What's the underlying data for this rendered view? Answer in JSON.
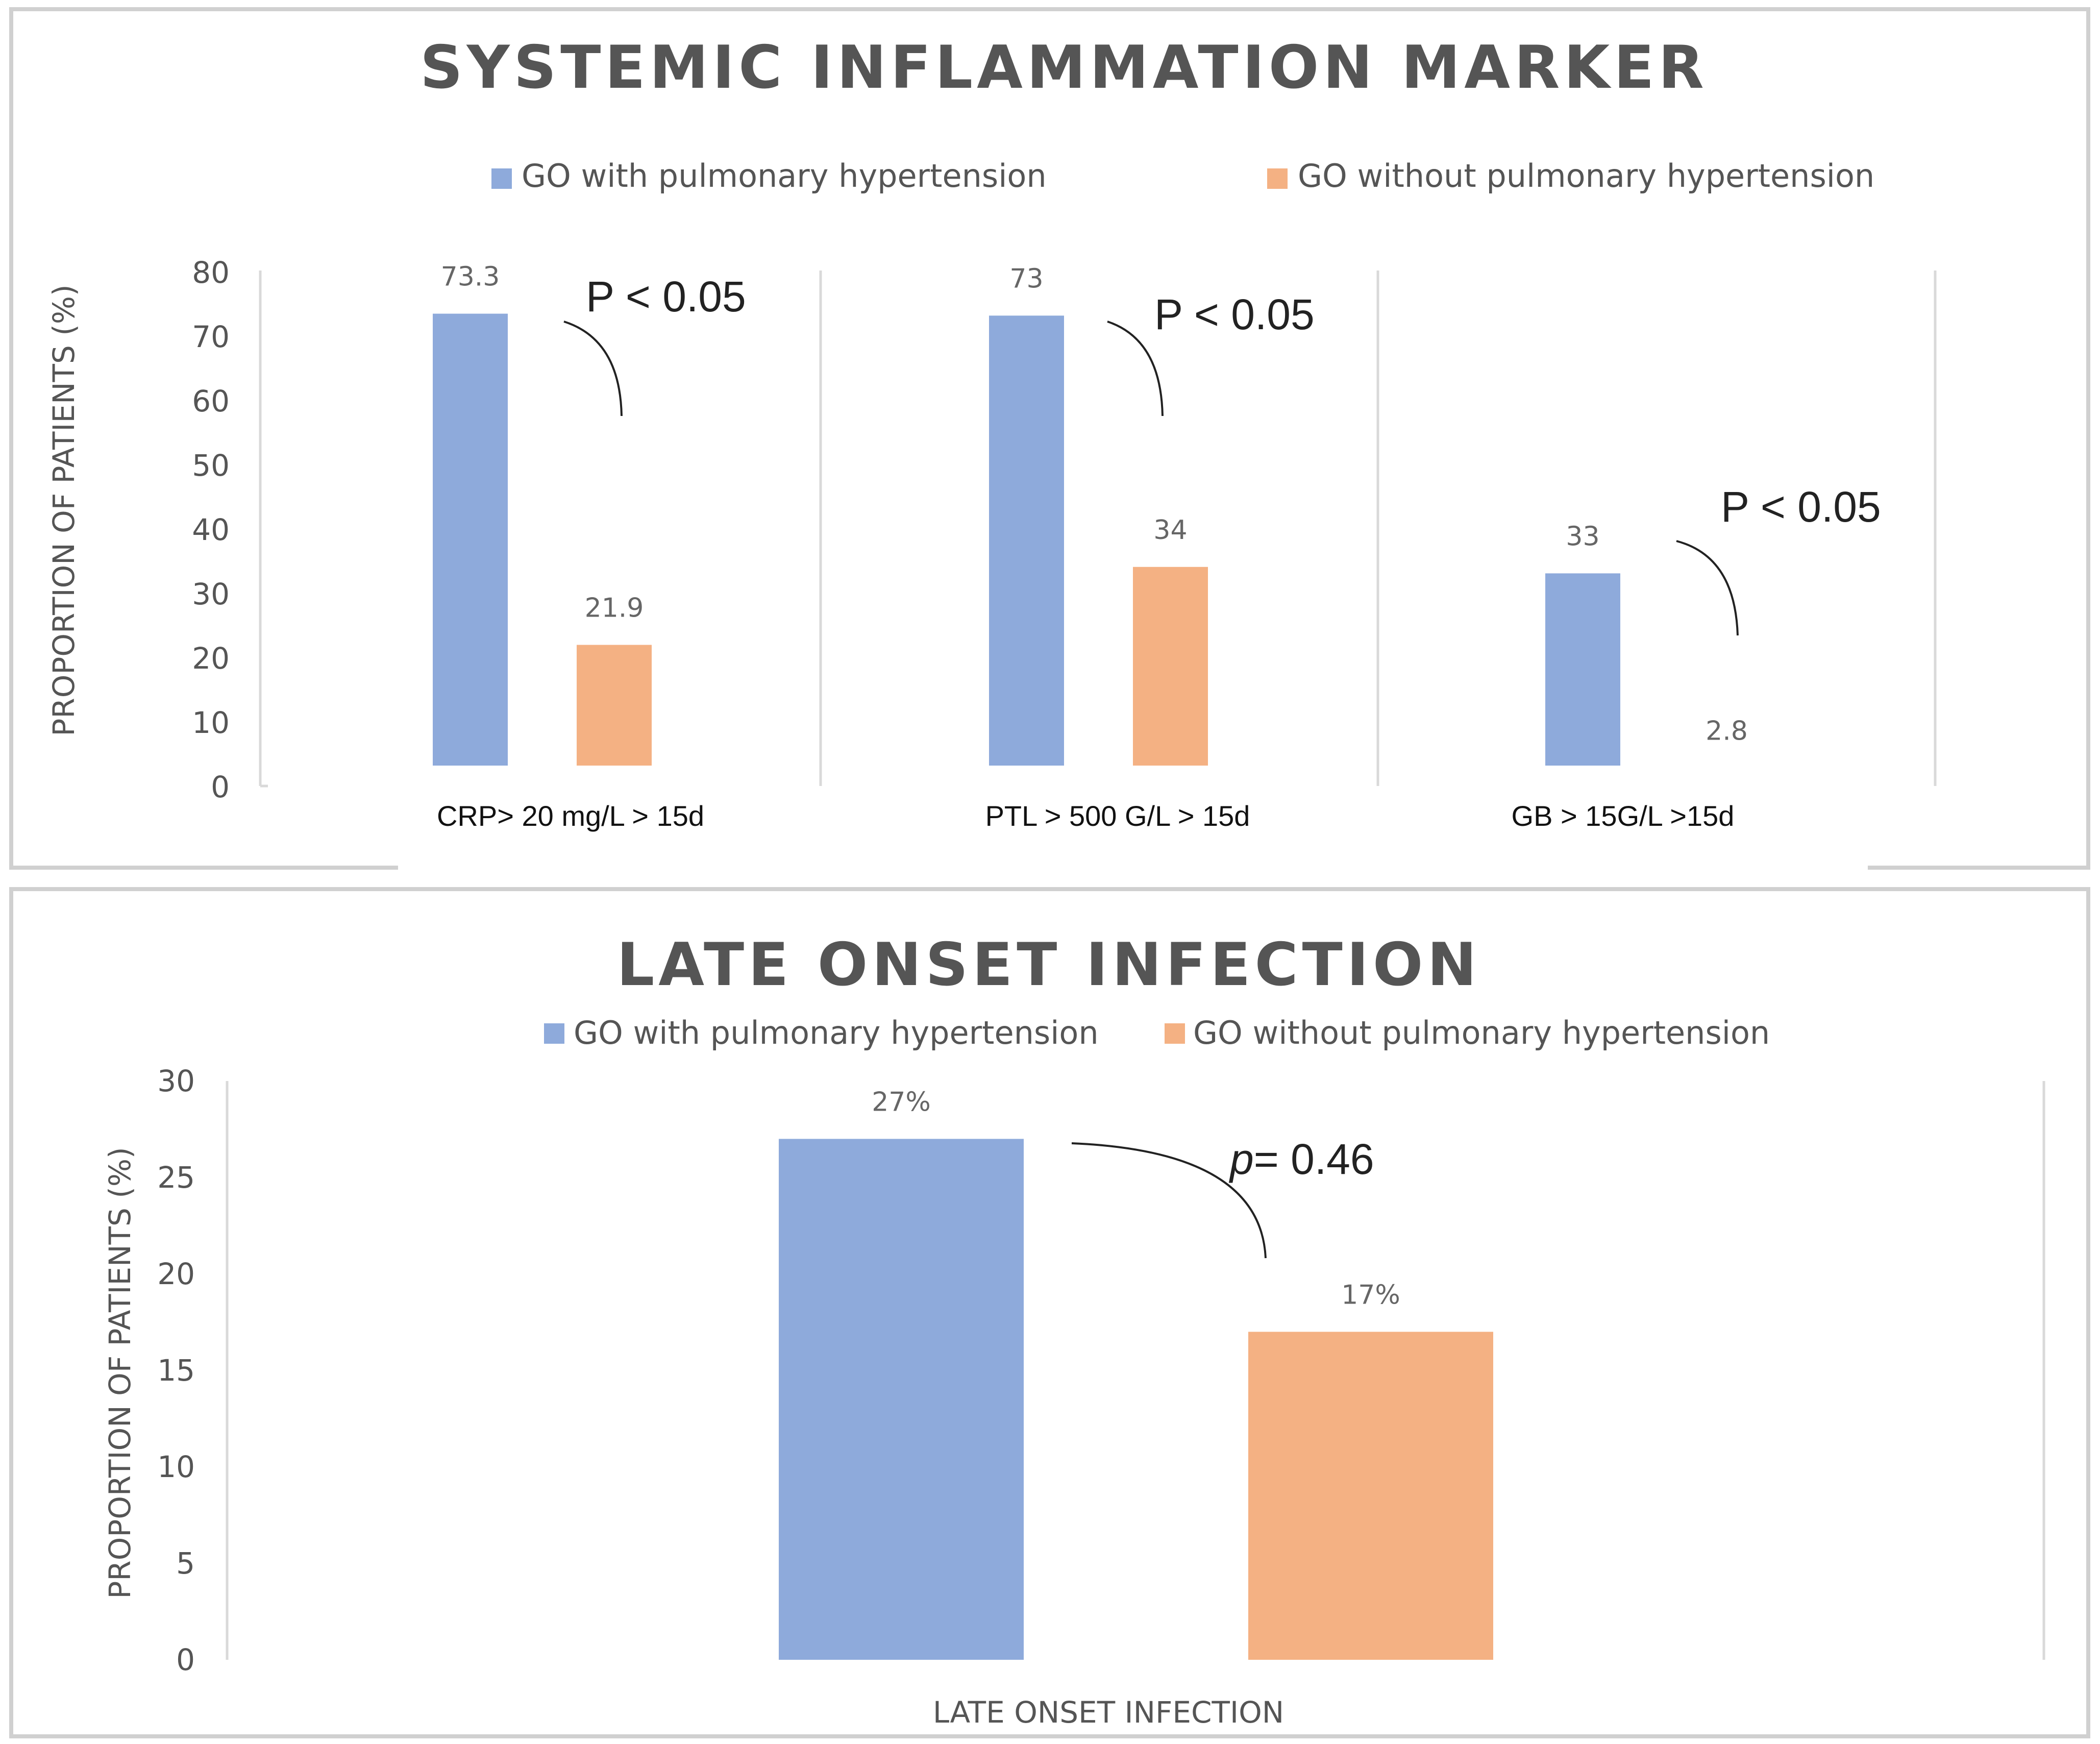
{
  "colors": {
    "series_a": "#8EAADB",
    "series_b": "#F4B183",
    "grid": "#d9d9d9",
    "frame": "#d0d0d0"
  },
  "chart_data": [
    {
      "type": "bar",
      "title": "SYSTEMIC INFLAMMATION MARKER",
      "ylabel": "PROPORTION OF PATIENTS (%)",
      "xlabel": "",
      "ylim": [
        0,
        80
      ],
      "yticks": [
        "0",
        "10",
        "20",
        "30",
        "40",
        "50",
        "60",
        "70",
        "80"
      ],
      "legend_position": "top",
      "categories": [
        "CRP> 20 mg/L > 15d",
        "PTL > 500 G/L > 15d",
        "GB > 15G/L >15d"
      ],
      "series": [
        {
          "name": "GO with pulmonary hypertension",
          "values": [
            73.3,
            73,
            33
          ],
          "labels": [
            "73.3",
            "73",
            "33"
          ]
        },
        {
          "name": "GO without pulmonary hypertension",
          "values": [
            21.9,
            34,
            2.8
          ],
          "labels": [
            "21.9",
            "34",
            "2.8"
          ]
        }
      ],
      "annotations": [
        "P < 0.05",
        "P < 0.05",
        "P < 0.05"
      ]
    },
    {
      "type": "bar",
      "title": "LATE ONSET INFECTION",
      "ylabel": "PROPORTION OF PATIENTS (%)",
      "xlabel": "",
      "ylim": [
        0,
        30
      ],
      "yticks": [
        "0",
        "5",
        "10",
        "15",
        "20",
        "25",
        "30"
      ],
      "legend_position": "top",
      "categories": [
        "LATE ONSET INFECTION"
      ],
      "series": [
        {
          "name": "GO with pulmonary hypertension",
          "values": [
            27
          ],
          "labels": [
            "27%"
          ]
        },
        {
          "name": "GO without pulmonary hypertension",
          "values": [
            17
          ],
          "labels": [
            "17%"
          ]
        }
      ],
      "annotation": {
        "italic": "p",
        "rest": "= 0.46"
      }
    }
  ]
}
